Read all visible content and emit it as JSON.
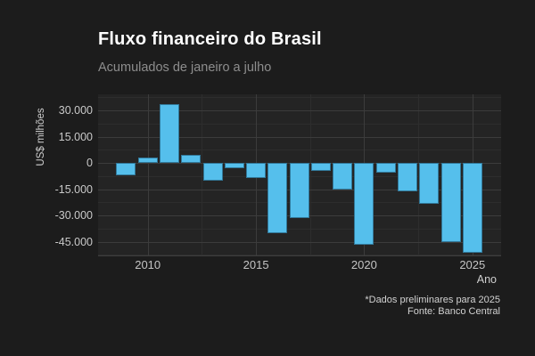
{
  "header": {
    "title": "Fluxo financeiro do Brasil",
    "subtitle": "Acumulados de janeiro a julho"
  },
  "chart_data": {
    "type": "bar",
    "title": "Fluxo financeiro do Brasil",
    "subtitle": "Acumulados de janeiro a julho",
    "xlabel": "Ano",
    "ylabel": "US$ milhões",
    "x": [
      2009,
      2010,
      2011,
      2012,
      2013,
      2014,
      2015,
      2016,
      2017,
      2018,
      2019,
      2020,
      2021,
      2022,
      2023,
      2024,
      2025
    ],
    "values": [
      -7000,
      3000,
      33500,
      4500,
      -10000,
      -3000,
      -8500,
      -40000,
      -31500,
      -4500,
      -15000,
      -47000,
      -5500,
      -16000,
      -23500,
      -45000,
      -51500
    ],
    "xticks": [
      2010,
      2015,
      2020,
      2025
    ],
    "xtick_labels": [
      "2010",
      "2015",
      "2020",
      "2025"
    ],
    "yticks": [
      30000,
      15000,
      0,
      -15000,
      -30000,
      -45000
    ],
    "ytick_labels": [
      "30.000",
      "15.000",
      "0",
      "-15.000",
      "-30.000",
      "-45.000"
    ],
    "yticks_minor": [
      37500,
      22500,
      7500,
      -7500,
      -22500,
      -37500,
      -52500
    ],
    "xticks_minor": [
      2012.5,
      2017.5,
      2022.5
    ],
    "ylim": [
      -52900,
      39200
    ],
    "grid": true,
    "legend": "none",
    "bar_color": "#55bfec"
  },
  "caption": {
    "line1": "*Dados preliminares para 2025",
    "line2": "Fonte: Banco Central"
  },
  "colors": {
    "background": "#1c1c1c",
    "panel": "#242424",
    "bar": "#55bfec",
    "title": "#ffffff",
    "subtitle": "#8d8d8d",
    "tick_text": "#c9c9c9",
    "grid_major": "#3c3c3c",
    "grid_minor": "#2d2d2d"
  }
}
